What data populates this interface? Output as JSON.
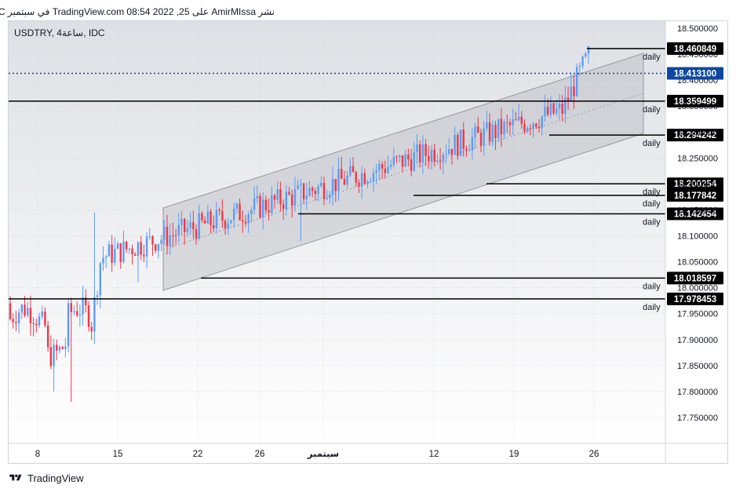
{
  "header": {
    "publisher_text": "نشر AmirMIssa على TradingView.com 08:54 2022 ,25 في سبتمبر UTC"
  },
  "footer": {
    "brand": "TradingView"
  },
  "chart_data": {
    "type": "candlestick",
    "symbol": "USDTRY, 4ساعة, IDC",
    "price_axis": {
      "ticks": [
        18.5,
        18.45,
        18.4,
        18.35,
        18.3,
        18.25,
        18.2,
        18.15,
        18.1,
        18.05,
        18.0,
        17.95,
        17.9,
        17.85,
        17.8,
        17.75
      ],
      "tick_labels": [
        "18.500000",
        "18.450000",
        "18.400000",
        "18.350000",
        "18.300000",
        "18.250000",
        "18.200000",
        "18.150000",
        "18.100000",
        "18.050000",
        "18.000000",
        "17.950000",
        "17.900000",
        "17.850000",
        "17.800000",
        "17.750000"
      ],
      "ylim": [
        17.72,
        18.525
      ]
    },
    "time_axis": {
      "tick_labels": [
        "8",
        "15",
        "22",
        "26",
        "سبتمبر",
        "12",
        "19",
        "26"
      ],
      "month_label": "سبتمبر"
    },
    "current_price": {
      "value": 18.4131,
      "label": "18.413100",
      "color": "#0d47a1"
    },
    "horizontal_levels": [
      {
        "value": 18.460849,
        "label": "18.460849",
        "tag": "daily"
      },
      {
        "value": 18.359499,
        "label": "18.359499",
        "tag": "daily"
      },
      {
        "value": 18.294242,
        "label": "18.294242",
        "tag": "daily"
      },
      {
        "value": 18.200254,
        "label": "18.200254",
        "tag": "daily"
      },
      {
        "value": 18.177842,
        "label": "18.177842",
        "tag": "daily"
      },
      {
        "value": 18.142454,
        "label": "18.142454",
        "tag": "daily"
      },
      {
        "value": 18.018597,
        "label": "18.018597",
        "tag": "daily"
      },
      {
        "value": 17.978453,
        "label": "17.978453",
        "tag": "daily"
      }
    ],
    "channel": {
      "color": "#9598a1",
      "description": "ascending parallel channel from 19 Aug to end of Sep"
    },
    "colors": {
      "up": "#5b9cf6",
      "down": "#f23645",
      "level_line": "#000000",
      "grid": "#e0e3eb"
    },
    "segments": [
      {
        "from_index": 0,
        "to_index": 30,
        "base": 17.93,
        "end": 17.95,
        "volatility": 0.03
      },
      {
        "from_index": 30,
        "to_index": 200,
        "base": 18.06,
        "end": 18.38,
        "volatility": 0.028
      }
    ],
    "grid": true
  }
}
